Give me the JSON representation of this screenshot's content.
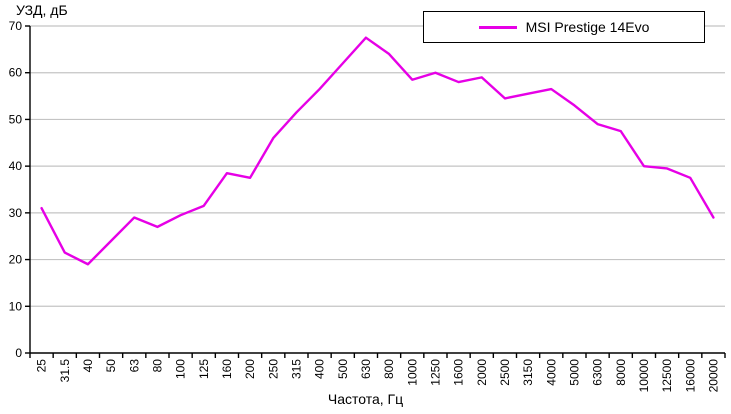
{
  "chart": {
    "y_axis_title": "УЗД, дБ",
    "x_axis_title": "Частота, Гц",
    "legend": {
      "label": "MSI Prestige 14Evo"
    },
    "colors": {
      "line": "#E600E6",
      "grid": "#C4C4C4",
      "axis": "#000000",
      "text": "#000000",
      "legend_border": "#000000",
      "background": "#FFFFFF"
    }
  },
  "chart_data": {
    "type": "line",
    "title": "",
    "xlabel": "Частота, Гц",
    "ylabel": "УЗД, дБ",
    "categories": [
      "25",
      "31.5",
      "40",
      "50",
      "63",
      "80",
      "100",
      "125",
      "160",
      "200",
      "250",
      "315",
      "400",
      "500",
      "630",
      "800",
      "1000",
      "1250",
      "1600",
      "2000",
      "2500",
      "3150",
      "4000",
      "5000",
      "6300",
      "8000",
      "10000",
      "12500",
      "16000",
      "20000"
    ],
    "series": [
      {
        "name": "MSI Prestige 14Evo",
        "color": "#E600E6",
        "values": [
          31,
          21.5,
          19,
          24,
          29,
          27,
          29.5,
          31.5,
          38.5,
          37.5,
          46,
          51.5,
          56.5,
          62,
          67.5,
          64,
          58.5,
          60,
          58,
          59,
          54.5,
          55.5,
          56.5,
          53,
          49,
          47.5,
          40,
          39.5,
          37.5,
          29
        ]
      }
    ],
    "ylim": [
      0,
      70
    ],
    "yticks": [
      0,
      10,
      20,
      30,
      40,
      50,
      60,
      70
    ],
    "grid": "horizontal",
    "legend_position": "top-right"
  }
}
